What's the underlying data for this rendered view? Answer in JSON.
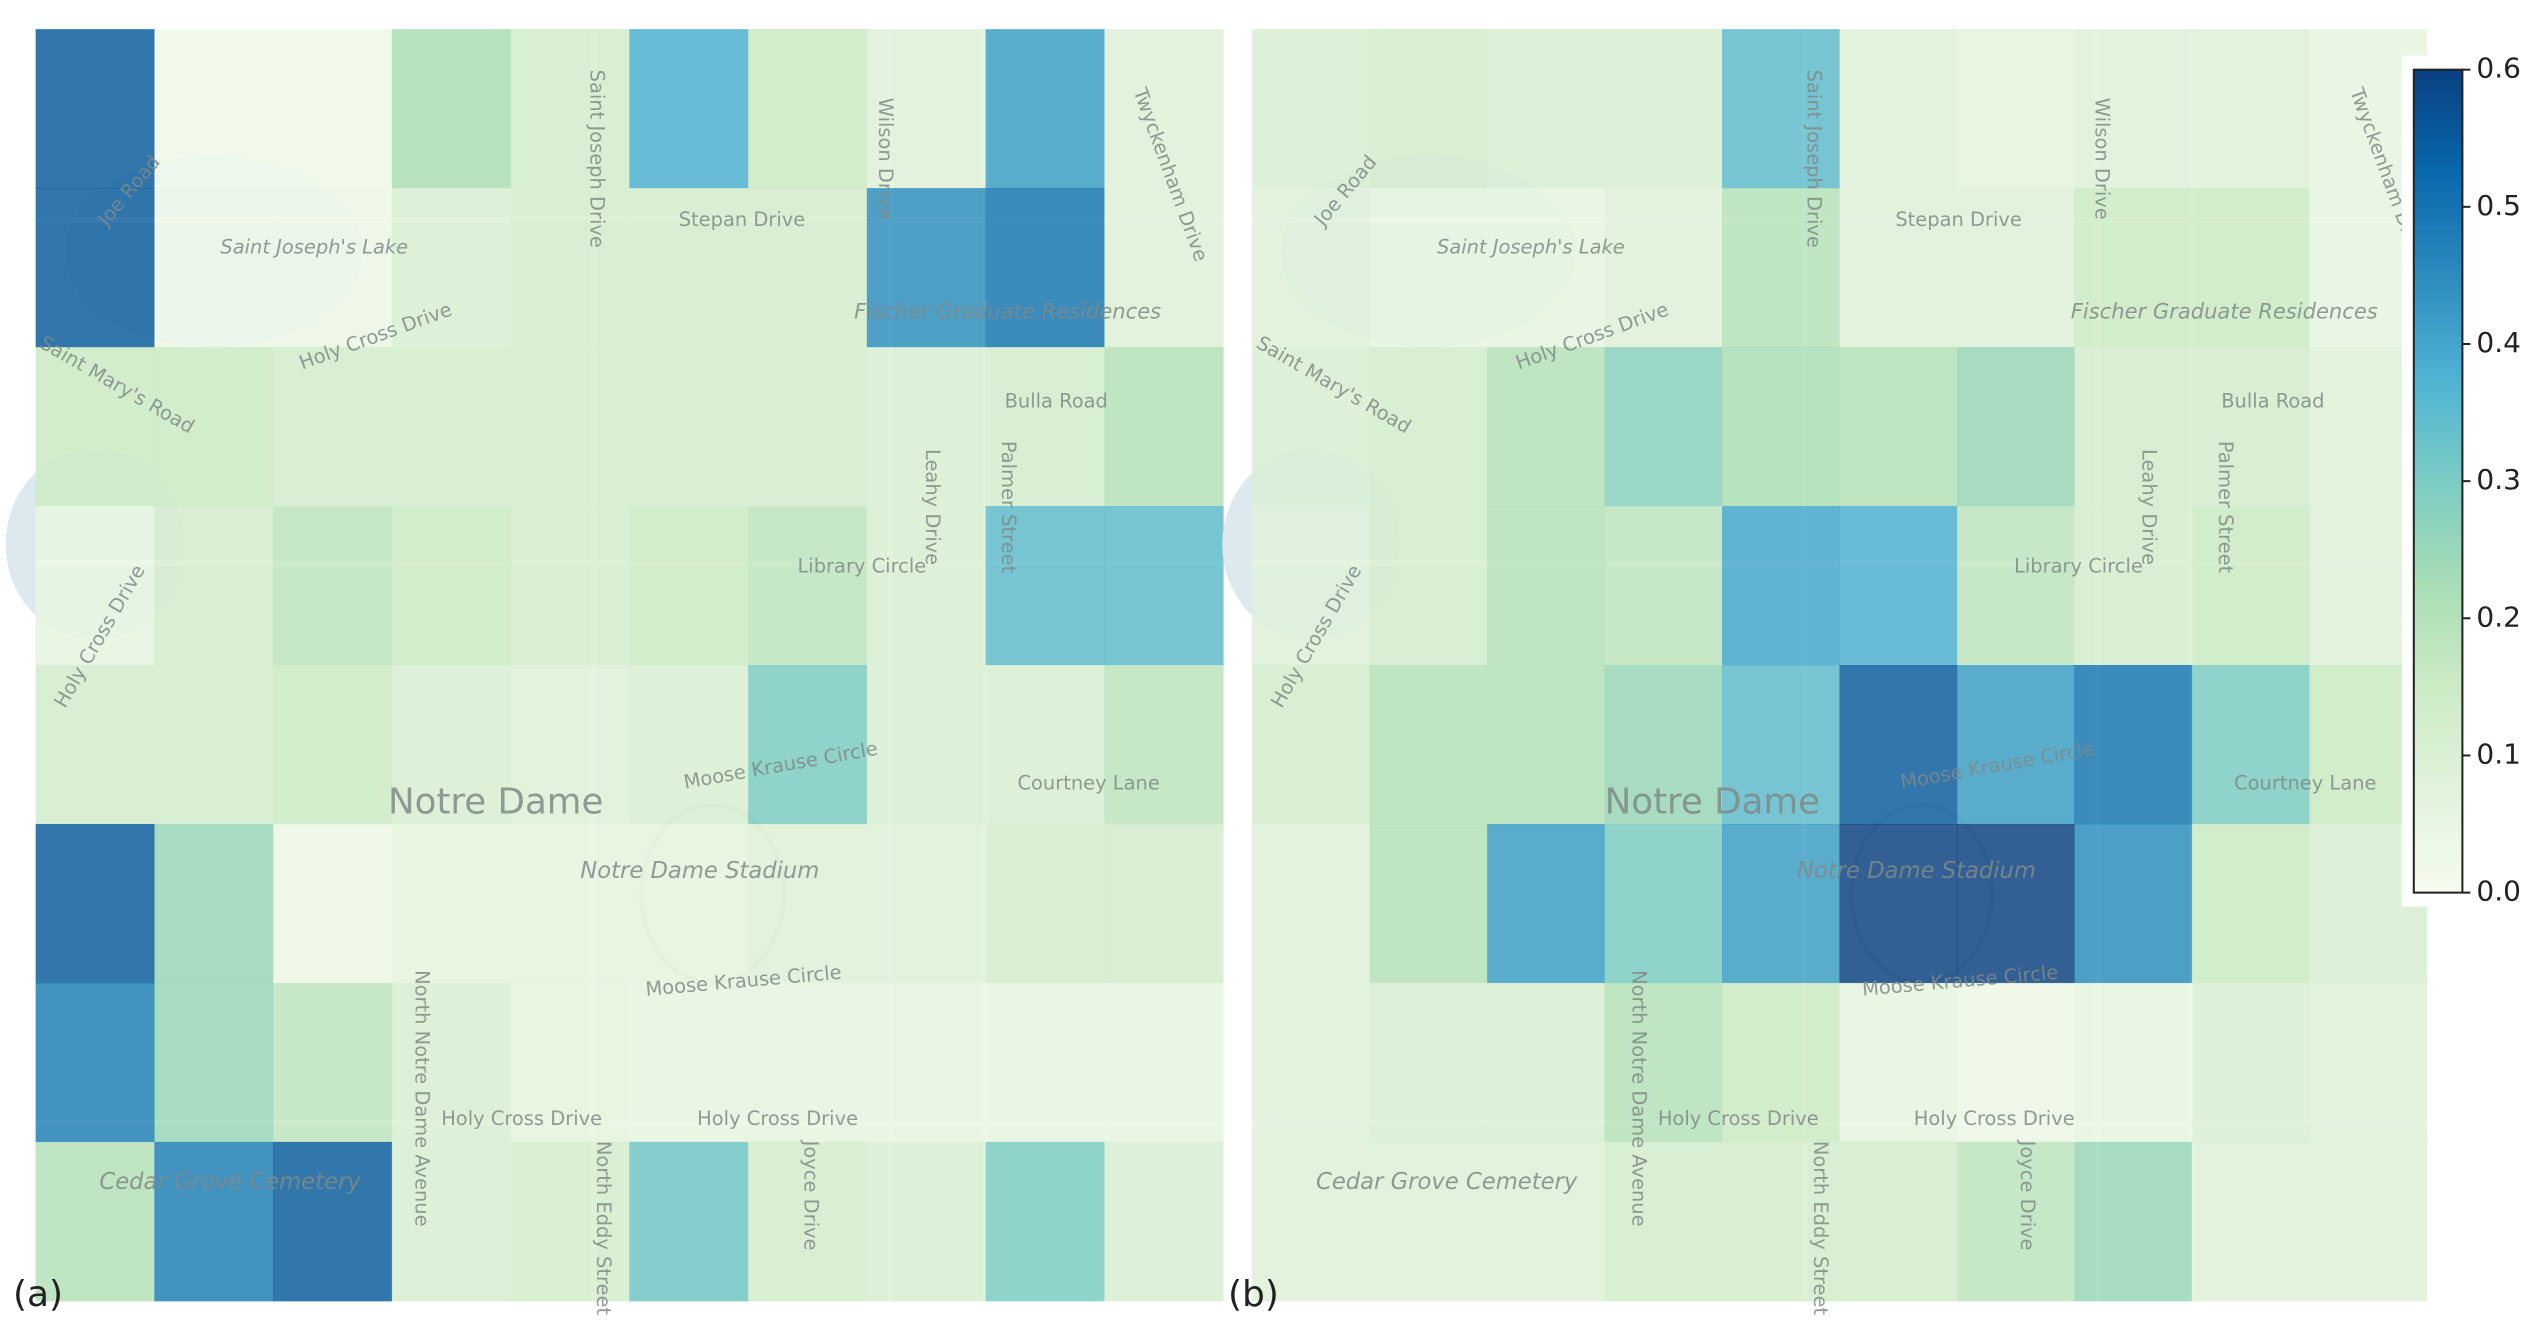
{
  "chart_data": [
    {
      "type": "heatmap",
      "label": "(a)",
      "colormap": "GnBu",
      "zlim": [
        0,
        0.6
      ],
      "values": [
        [
          0.55,
          0.02,
          0.02,
          0.22,
          0.12,
          0.38,
          0.15,
          0.08,
          0.42,
          0.08
        ],
        [
          0.55,
          0.03,
          0.03,
          0.1,
          0.12,
          0.12,
          0.12,
          0.45,
          0.5,
          0.08
        ],
        [
          0.15,
          0.15,
          0.12,
          0.12,
          0.12,
          0.12,
          0.12,
          0.1,
          0.12,
          0.2
        ],
        [
          0.05,
          0.12,
          0.18,
          0.15,
          0.12,
          0.15,
          0.18,
          0.1,
          0.35,
          0.35
        ],
        [
          0.12,
          0.12,
          0.15,
          0.1,
          0.08,
          0.1,
          0.3,
          0.1,
          0.1,
          0.18
        ],
        [
          0.55,
          0.25,
          0.03,
          0.06,
          0.06,
          0.06,
          0.08,
          0.08,
          0.12,
          0.12
        ],
        [
          0.48,
          0.25,
          0.18,
          0.1,
          0.06,
          0.05,
          0.05,
          0.05,
          0.05,
          0.05
        ],
        [
          0.2,
          0.48,
          0.55,
          0.1,
          0.12,
          0.32,
          0.12,
          0.1,
          0.3,
          0.1
        ]
      ],
      "map_labels": [
        "Joe Road",
        "Saint Joseph's Lake",
        "Holy Cross Drive",
        "Saint Mary's Road",
        "Saint Joseph Drive",
        "Stepan Drive",
        "Wilson Drive",
        "Fischer Graduate Residences",
        "Bulla Road",
        "Leahy Drive",
        "Palmer Street",
        "Library Circle",
        "Moose Krause Circle",
        "Notre Dame",
        "Notre Dame Stadium",
        "Courtney Lane",
        "Moose Krause Circle",
        "North Notre Dame Avenue",
        "Holy Cross Drive",
        "Holy Cross Drive",
        "North Eddy Street",
        "Joyce Drive",
        "Cedar Grove Cemetery",
        "Twyckenham Drive",
        "Holy Cross Drive"
      ]
    },
    {
      "type": "heatmap",
      "label": "(b)",
      "colormap": "GnBu",
      "zlim": [
        0,
        0.6
      ],
      "zticks": [
        {
          "value": 0,
          "label": "0.0"
        },
        0.1,
        0.2,
        0.3,
        0.4,
        0.5,
        0.6
      ],
      "values": [
        [
          0.1,
          0.12,
          0.1,
          0.1,
          0.35,
          0.08,
          0.06,
          0.08,
          0.08,
          0.05
        ],
        [
          0.08,
          0.05,
          0.05,
          0.08,
          0.2,
          0.08,
          0.08,
          0.15,
          0.15,
          0.05
        ],
        [
          0.1,
          0.12,
          0.2,
          0.28,
          0.22,
          0.2,
          0.25,
          0.12,
          0.12,
          0.08
        ],
        [
          0.08,
          0.12,
          0.2,
          0.18,
          0.4,
          0.38,
          0.18,
          0.12,
          0.15,
          0.08
        ],
        [
          0.12,
          0.2,
          0.2,
          0.25,
          0.35,
          0.55,
          0.42,
          0.5,
          0.3,
          0.15
        ],
        [
          0.08,
          0.2,
          0.42,
          0.3,
          0.42,
          0.6,
          0.6,
          0.45,
          0.15,
          0.1
        ],
        [
          0.08,
          0.1,
          0.1,
          0.2,
          0.15,
          0.05,
          0.03,
          0.05,
          0.1,
          0.08
        ],
        [
          0.08,
          0.08,
          0.08,
          0.12,
          0.12,
          0.12,
          0.18,
          0.25,
          0.08,
          0.08
        ]
      ],
      "map_labels": [
        "Joe Road",
        "Saint Joseph's Lake",
        "Holy Cross Drive",
        "Saint Mary's Road",
        "Saint Joseph Drive",
        "Stepan Drive",
        "Wilson Drive",
        "Fischer Graduate Residences",
        "Bulla Road",
        "Leahy Drive",
        "Palmer Street",
        "Library Circle",
        "Moose Krause Circle",
        "Notre Dame",
        "Notre Dame Stadium",
        "Courtney Lane",
        "Moose Krause Circle",
        "North Notre Dame Avenue",
        "Holy Cross Drive",
        "Holy Cross Drive",
        "North Eddy Street",
        "Joyce Drive",
        "Cedar Grove Cemetery",
        "Twyckenham Drive",
        "Holy Cross Drive"
      ]
    }
  ]
}
